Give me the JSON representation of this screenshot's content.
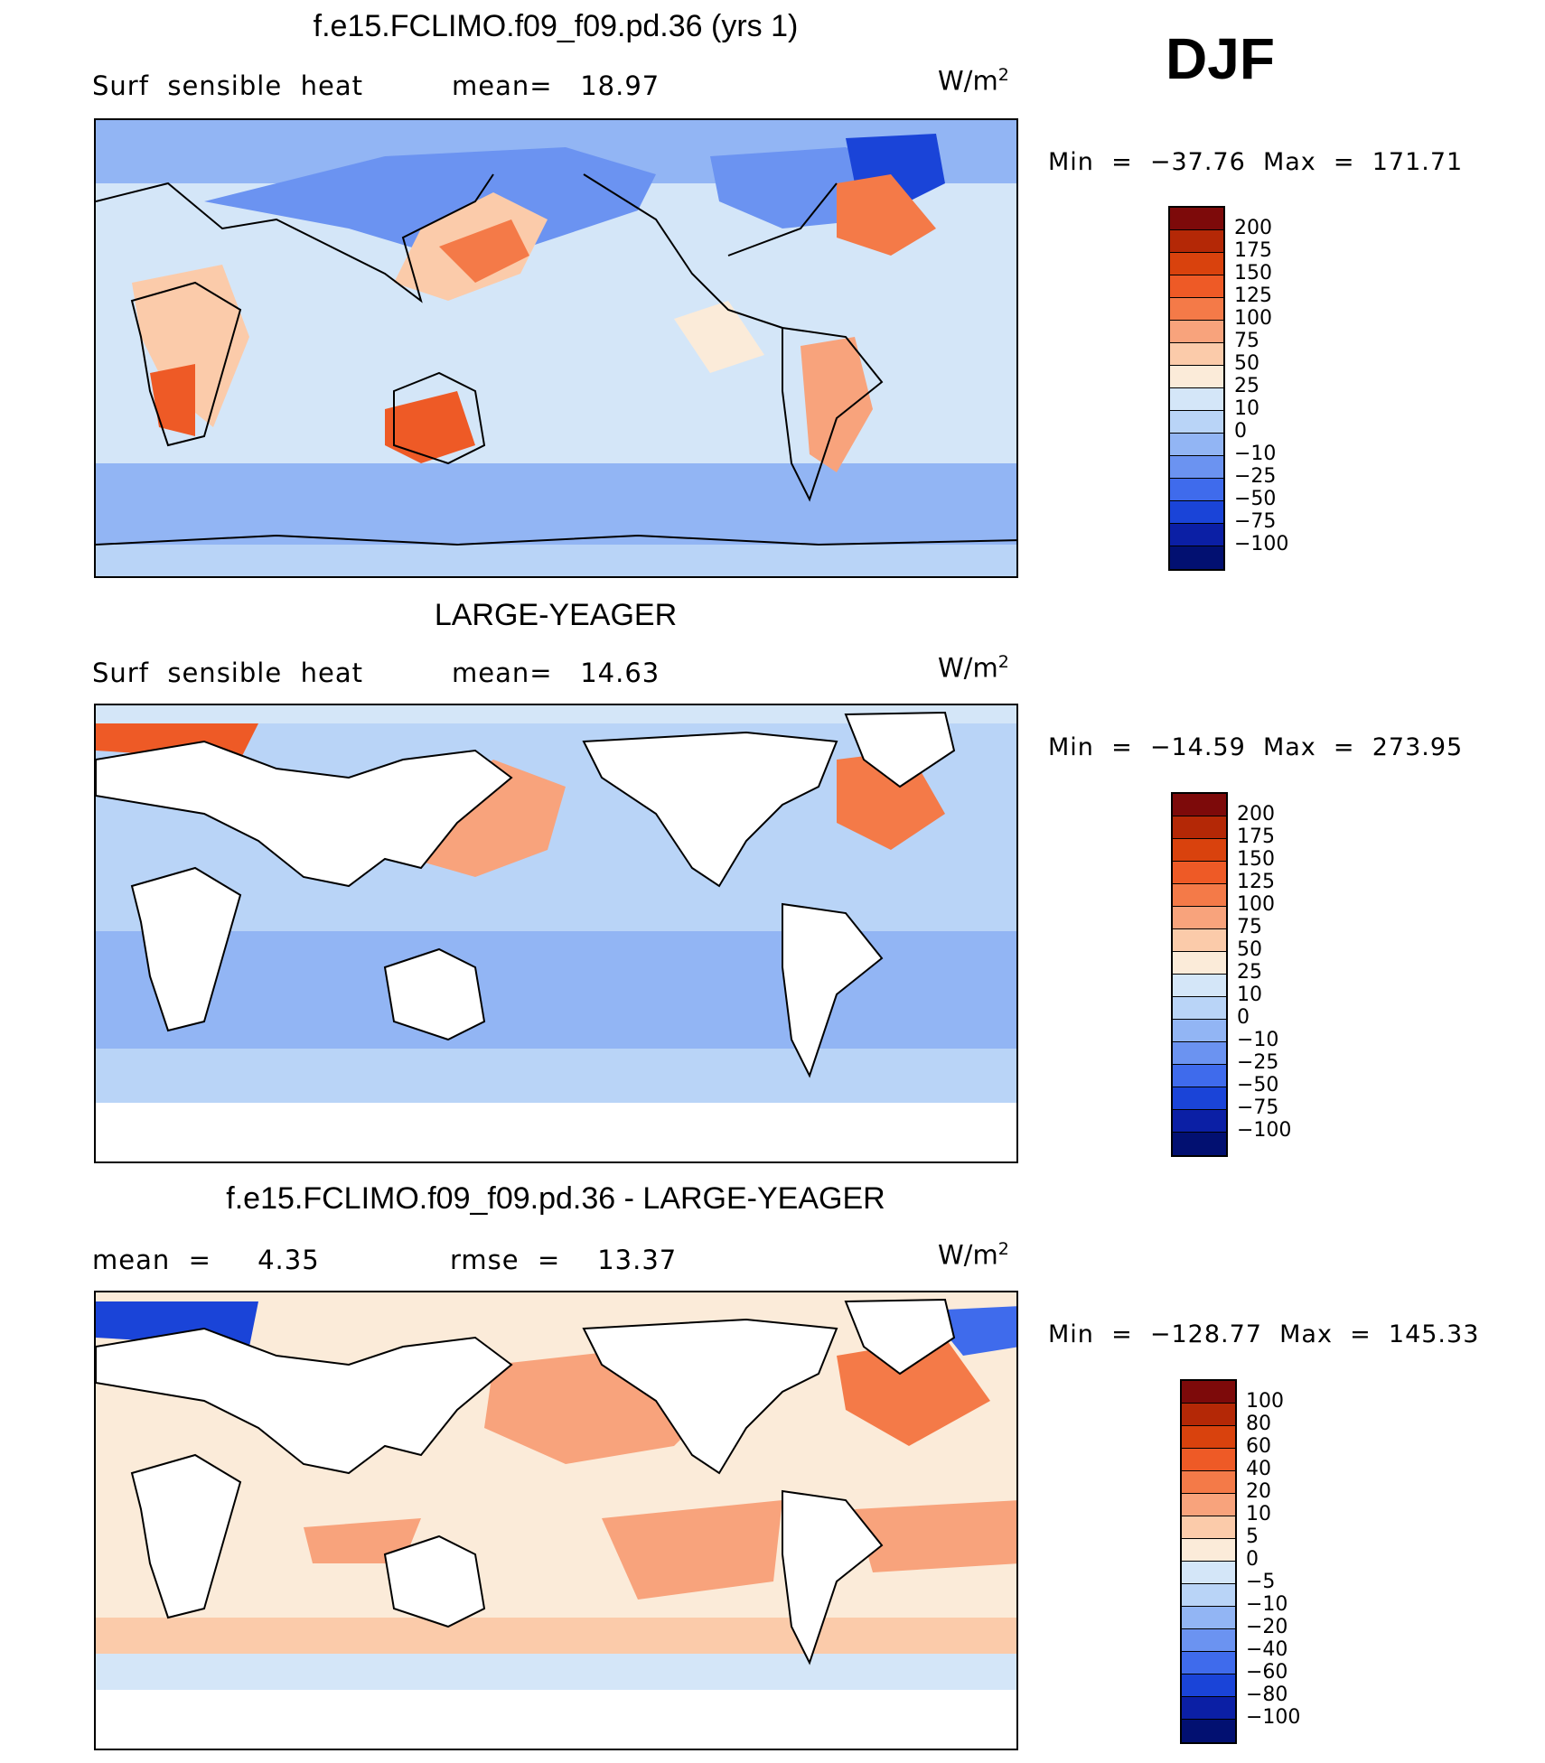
{
  "season": "DJF",
  "panels": [
    {
      "title": "f.e15.FCLIMO.f09_f09.pd.36 (yrs 1)",
      "left_text": "Surf  sensible  heat",
      "mid_text": "mean=   18.97",
      "units_base": "W/m",
      "units_exp": "2",
      "minmax": "Min  =  −37.76  Max  =  171.71",
      "colorbar": {
        "labels": [
          "200",
          "175",
          "150",
          "125",
          "100",
          "75",
          "50",
          "25",
          "10",
          "0",
          "−10",
          "−25",
          "−50",
          "−75",
          "−100"
        ],
        "colors": [
          "#7d0a0a",
          "#b42806",
          "#d9420d",
          "#ee5a26",
          "#f47a48",
          "#f8a37c",
          "#fbcbaa",
          "#fbebd9",
          "#d4e6f8",
          "#b9d4f7",
          "#92b5f4",
          "#6b93f1",
          "#3f6bec",
          "#1a44d8",
          "#0b1fa5",
          "#021071"
        ]
      }
    },
    {
      "title": "LARGE-YEAGER",
      "left_text": "Surf  sensible  heat",
      "mid_text": "mean=   14.63",
      "units_base": "W/m",
      "units_exp": "2",
      "minmax": "Min  =  −14.59  Max  =  273.95",
      "colorbar": {
        "labels": [
          "200",
          "175",
          "150",
          "125",
          "100",
          "75",
          "50",
          "25",
          "10",
          "0",
          "−10",
          "−25",
          "−50",
          "−75",
          "−100"
        ],
        "colors": [
          "#7d0a0a",
          "#b42806",
          "#d9420d",
          "#ee5a26",
          "#f47a48",
          "#f8a37c",
          "#fbcbaa",
          "#fbebd9",
          "#d4e6f8",
          "#b9d4f7",
          "#92b5f4",
          "#6b93f1",
          "#3f6bec",
          "#1a44d8",
          "#0b1fa5",
          "#021071"
        ]
      }
    },
    {
      "title": "f.e15.FCLIMO.f09_f09.pd.36 - LARGE-YEAGER",
      "left_text": "mean  =     4.35",
      "mid_text": "rmse  =    13.37",
      "units_base": "W/m",
      "units_exp": "2",
      "minmax": "Min  =  −128.77  Max  =  145.33",
      "colorbar": {
        "labels": [
          "100",
          "80",
          "60",
          "40",
          "20",
          "10",
          "5",
          "0",
          "−5",
          "−10",
          "−20",
          "−40",
          "−60",
          "−80",
          "−100"
        ],
        "colors": [
          "#7d0a0a",
          "#b42806",
          "#d9420d",
          "#ee5a26",
          "#f47a48",
          "#f8a37c",
          "#fbcbaa",
          "#fbebd9",
          "#d4e6f8",
          "#b9d4f7",
          "#92b5f4",
          "#6b93f1",
          "#3f6bec",
          "#1a44d8",
          "#0b1fa5",
          "#021071"
        ]
      }
    }
  ]
}
